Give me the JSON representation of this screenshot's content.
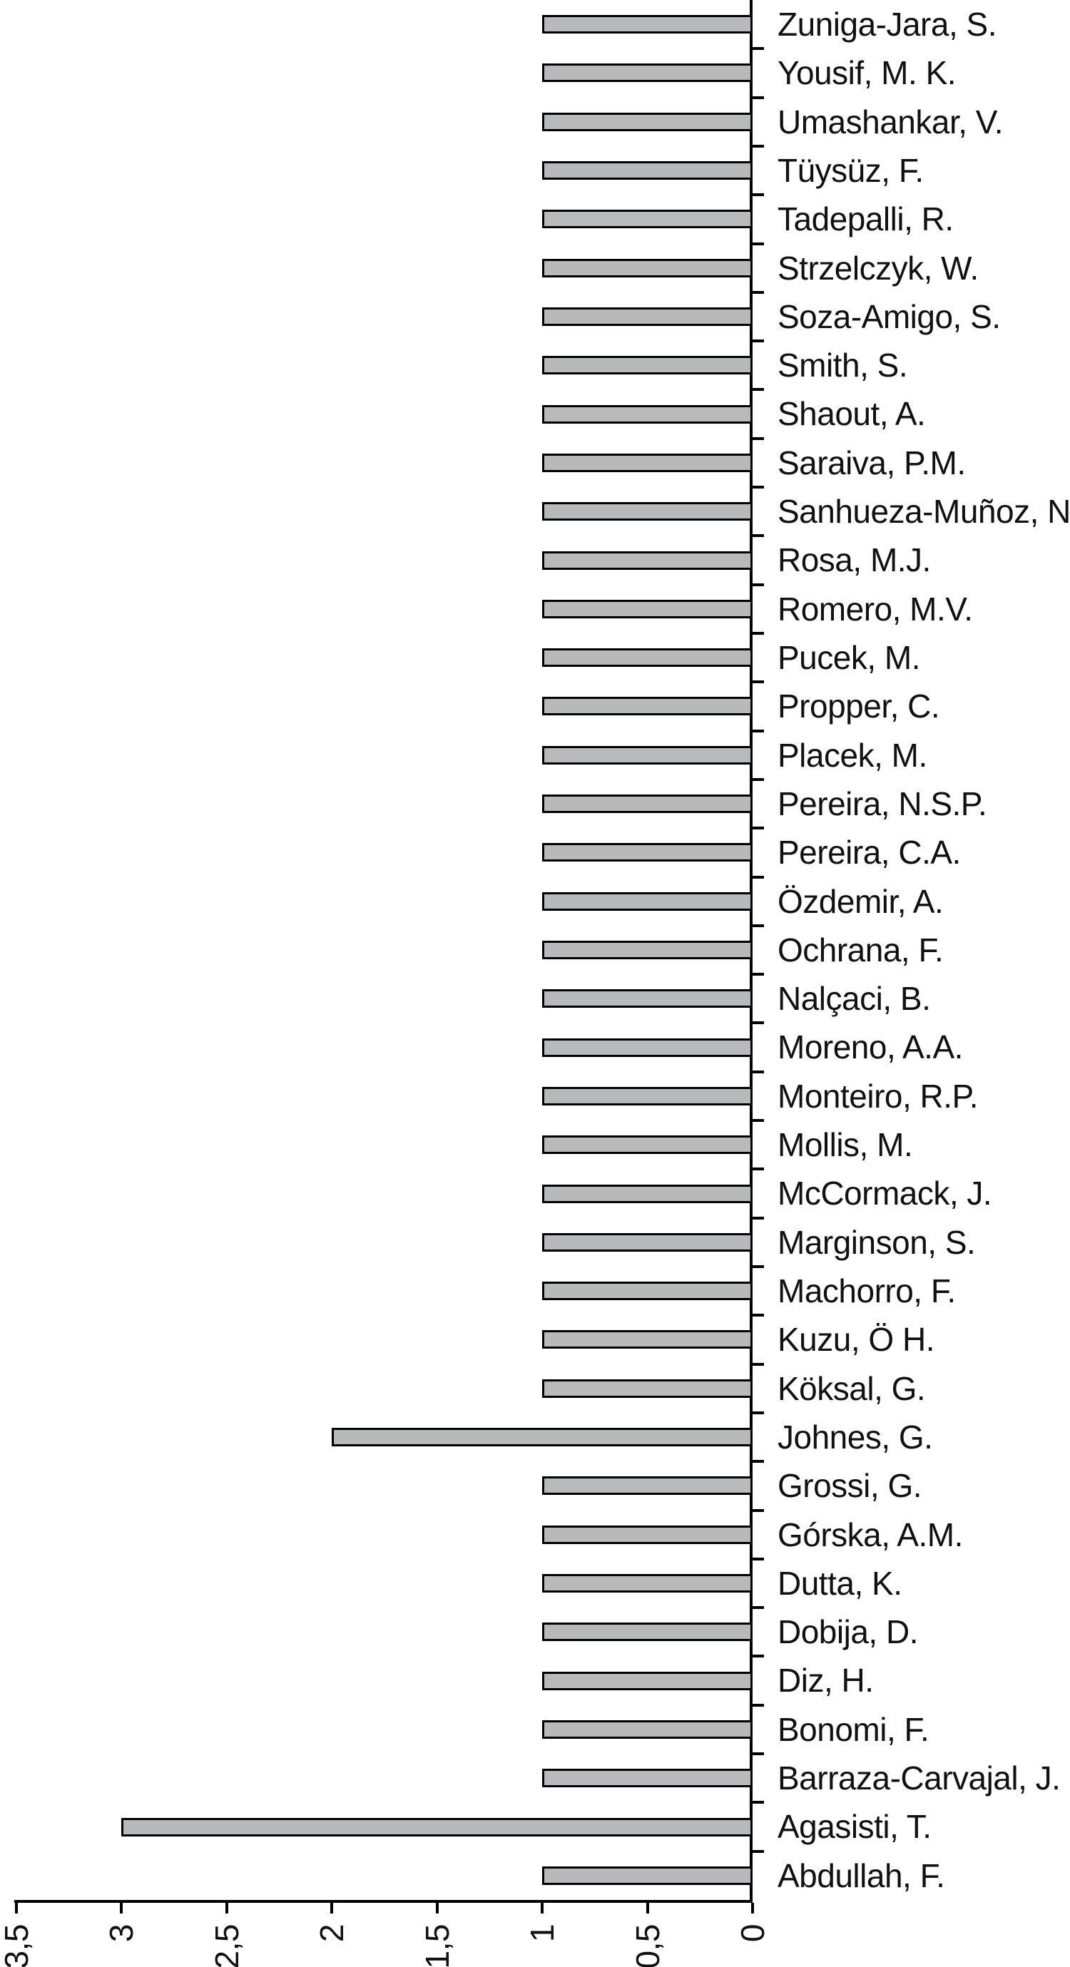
{
  "chart_data": {
    "type": "bar",
    "orientation": "horizontal",
    "title": "",
    "xlabel": "",
    "ylabel": "",
    "value_axis_side": "bottom",
    "value_axis_direction": "right-to-left",
    "xlim": [
      0,
      3.5
    ],
    "tick_step": 0.5,
    "decimal_separator": ",",
    "x_tick_values": [
      3.5,
      3,
      2.5,
      2,
      1.5,
      1,
      0.5,
      0
    ],
    "x_tick_labels": [
      "3,5",
      "3",
      "2,5",
      "2",
      "1,5",
      "1",
      "0,5",
      "0"
    ],
    "x_tick_label_rotation_deg": -90,
    "grid": false,
    "legend": false,
    "categories": [
      "Zuniga-Jara, S.",
      "Yousif, M. K.",
      "Umashankar, V.",
      "Tüysüz, F.",
      "Tadepalli, R.",
      "Strzelczyk, W.",
      "Soza-Amigo, S.",
      "Smith, S.",
      "Shaout, A.",
      "Saraiva, P.M.",
      "Sanhueza-Muñoz, N.",
      "Rosa, M.J.",
      "Romero, M.V.",
      "Pucek, M.",
      "Propper, C.",
      "Placek, M.",
      "Pereira, N.S.P.",
      "Pereira, C.A.",
      "Özdemir, A.",
      "Ochrana, F.",
      "Nalçaci, B.",
      "Moreno, A.A.",
      "Monteiro, R.P.",
      "Mollis, M.",
      "McCormack, J.",
      "Marginson, S.",
      "Machorro, F.",
      "Kuzu, Ö H.",
      "Köksal, G.",
      "Johnes, G.",
      "Grossi, G.",
      "Górska, A.M.",
      "Dutta, K.",
      "Dobija, D.",
      "Diz, H.",
      "Bonomi, F.",
      "Barraza-Carvajal, J.",
      "Agasisti, T.",
      "Abdullah, F."
    ],
    "values": [
      1,
      1,
      1,
      1,
      1,
      1,
      1,
      1,
      1,
      1,
      1,
      1,
      1,
      1,
      1,
      1,
      1,
      1,
      1,
      1,
      1,
      1,
      1,
      1,
      1,
      1,
      1,
      1,
      1,
      2,
      1,
      1,
      1,
      1,
      1,
      1,
      1,
      3,
      1
    ],
    "colors": {
      "bar_fill": "#b7b9bb",
      "bar_border": "#000000",
      "axis": "#000000",
      "text": "#111111",
      "background": "#ffffff"
    }
  }
}
